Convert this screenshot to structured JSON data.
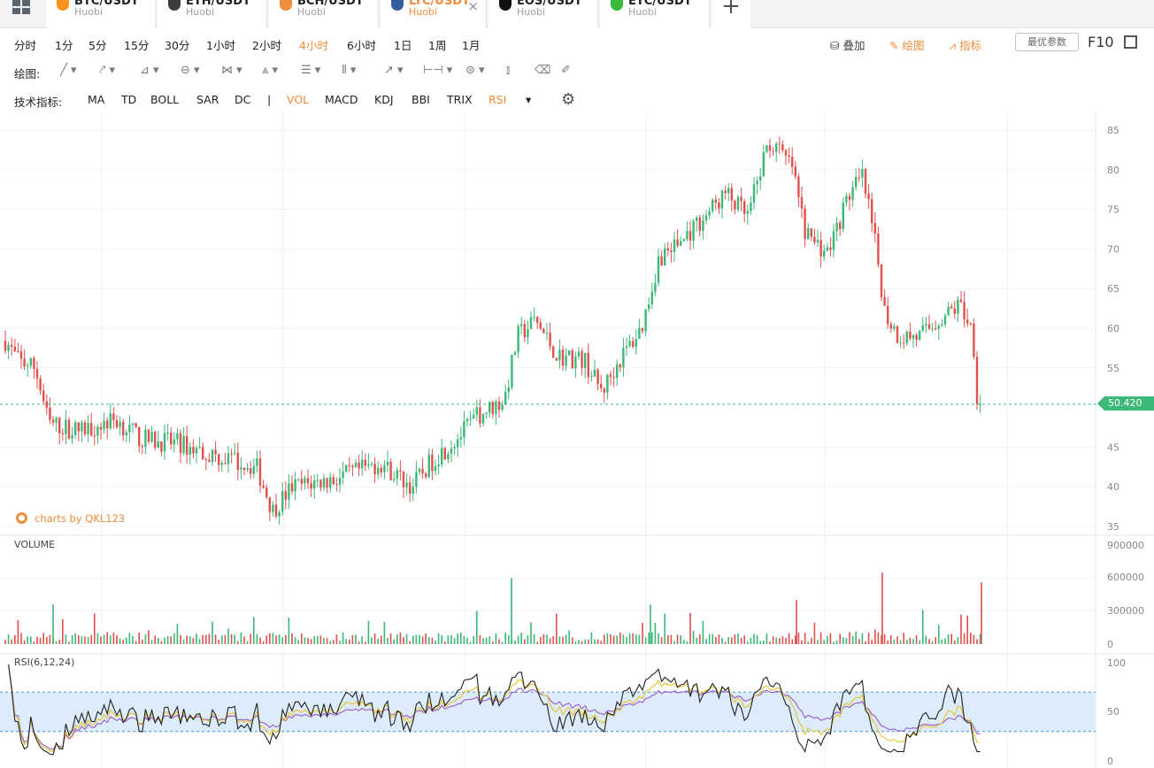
{
  "tabs": [
    {
      "pair": "BTC/USDT",
      "exchange": "Huobi",
      "color": "#f7931a",
      "x": 52,
      "w": 124
    },
    {
      "pair": "ETH/USDT",
      "exchange": "Huobi",
      "color": "#3c3c3d",
      "x": 178,
      "w": 124
    },
    {
      "pair": "BCH/USDT",
      "exchange": "Huobi",
      "color": "#f08c3a",
      "x": 304,
      "w": 124
    },
    {
      "pair": "LTC/USDT",
      "exchange": "Huobi",
      "color": "#345d9d",
      "x": 430,
      "w": 120,
      "active": true,
      "close": "×"
    },
    {
      "pair": "EOS/USDT",
      "exchange": "Huobi",
      "color": "#111111",
      "x": 552,
      "w": 124
    },
    {
      "pair": "ETC/USDT",
      "exchange": "Huobi",
      "color": "#3ab83a",
      "x": 678,
      "w": 124
    }
  ],
  "add_tab": "+",
  "timeframes": [
    {
      "label": "分时"
    },
    {
      "label": "1分"
    },
    {
      "label": "5分"
    },
    {
      "label": "15分"
    },
    {
      "label": "30分"
    },
    {
      "label": "1小时"
    },
    {
      "label": "2小时"
    },
    {
      "label": "4小时",
      "active": true
    },
    {
      "label": "6小时"
    },
    {
      "label": "1日"
    },
    {
      "label": "1周"
    },
    {
      "label": "1月"
    }
  ],
  "toolbar_right": {
    "overlay": "叠加",
    "draw": "绘图",
    "indicator": "指标",
    "params": "最优参数",
    "f10": "F10"
  },
  "draw_label": "绘图:",
  "indicator_label": "技术指标:",
  "indicators": [
    {
      "label": "MA"
    },
    {
      "label": "TD"
    },
    {
      "label": "BOLL"
    },
    {
      "label": "SAR"
    },
    {
      "label": "DC"
    },
    {
      "label": "|",
      "sep": true
    },
    {
      "label": "VOL",
      "active": true
    },
    {
      "label": "MACD"
    },
    {
      "label": "KDJ"
    },
    {
      "label": "BBI"
    },
    {
      "label": "TRIX"
    },
    {
      "label": "RSI",
      "active": true
    },
    {
      "label": "▾"
    }
  ],
  "watermark": "charts by QKL123",
  "volume_label": "VOLUME",
  "rsi_label": "RSI(6,12,24)",
  "colors": {
    "up": "#3cb878",
    "down": "#e0504c",
    "accent": "#f08c3a",
    "rsi6": "#222222",
    "rsi12": "#e8c22c",
    "rsi24": "#9b59d0"
  },
  "chart_data": {
    "type": "candlestick",
    "current_price": "50.420",
    "price_axis": {
      "ticks": [
        85,
        80,
        75,
        70,
        65,
        60,
        55,
        45,
        40,
        35
      ],
      "range": [
        34,
        86
      ]
    },
    "volume_axis": {
      "ticks": [
        "900000",
        "600000",
        "300000",
        "0"
      ],
      "range": [
        0,
        900000
      ]
    },
    "rsi_axis": {
      "ticks": [
        "100",
        "50",
        "0"
      ],
      "band": [
        30,
        70
      ]
    },
    "trend_points": [
      [
        0,
        59.5
      ],
      [
        20,
        56
      ],
      [
        40,
        55
      ],
      [
        55,
        48
      ],
      [
        90,
        47
      ],
      [
        130,
        48.5
      ],
      [
        160,
        46
      ],
      [
        200,
        45.5
      ],
      [
        240,
        44
      ],
      [
        290,
        42.5
      ],
      [
        308,
        37
      ],
      [
        330,
        40
      ],
      [
        380,
        41
      ],
      [
        430,
        43
      ],
      [
        465,
        40
      ],
      [
        490,
        43.5
      ],
      [
        520,
        46.5
      ],
      [
        540,
        49
      ],
      [
        570,
        51
      ],
      [
        585,
        59
      ],
      [
        605,
        61
      ],
      [
        630,
        56.5
      ],
      [
        660,
        56
      ],
      [
        680,
        52
      ],
      [
        700,
        56
      ],
      [
        725,
        60
      ],
      [
        745,
        69
      ],
      [
        770,
        71
      ],
      [
        795,
        74
      ],
      [
        820,
        77
      ],
      [
        845,
        74
      ],
      [
        868,
        83.5
      ],
      [
        895,
        80.5
      ],
      [
        910,
        72
      ],
      [
        935,
        69.5
      ],
      [
        960,
        77
      ],
      [
        975,
        79
      ],
      [
        990,
        70
      ],
      [
        1000,
        62
      ],
      [
        1015,
        59
      ],
      [
        1040,
        59
      ],
      [
        1060,
        61
      ],
      [
        1085,
        63
      ],
      [
        1098,
        60
      ],
      [
        1108,
        50.4
      ]
    ]
  }
}
